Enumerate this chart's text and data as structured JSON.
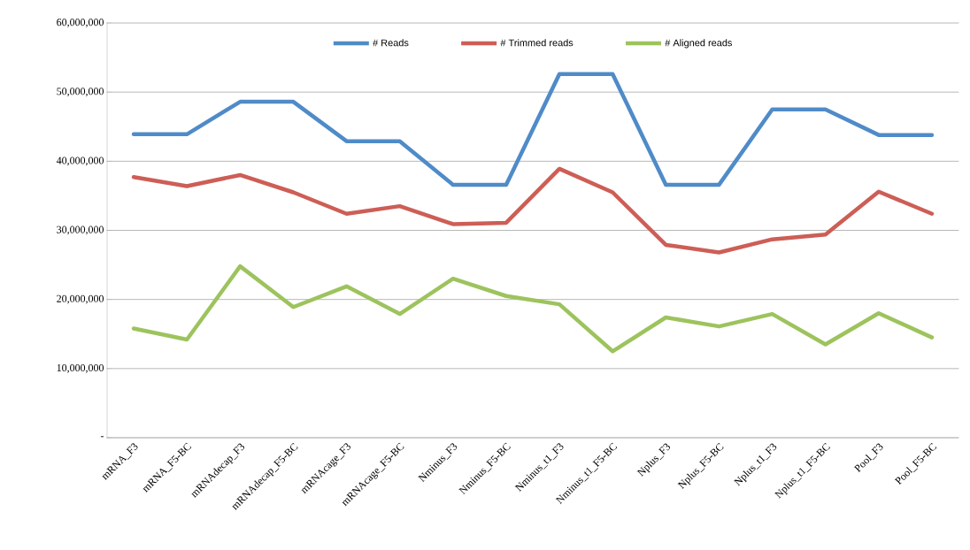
{
  "chart_data": {
    "type": "line",
    "categories": [
      "mRNA_F3",
      "mRNA_F5-BC",
      "mRNAdecap_F3",
      "mRNAdecap_F5-BC",
      "mRNAcage_F3",
      "mRNAcage_F5-BC",
      "Nminus_F3",
      "Nminus_F5-BC",
      "Nminus_t1_F3",
      "Nminus_t1_F5-BC",
      "Nplus_F3",
      "Nplus_F5-BC",
      "Nplus_t1_F3",
      "Nplus_t1_F5-BC",
      "Pool_F3",
      "Pool_F5-BC"
    ],
    "series": [
      {
        "name": "# Reads",
        "color": "#4f8bc8",
        "values": [
          43900000,
          43900000,
          48600000,
          48600000,
          42900000,
          42900000,
          36600000,
          36600000,
          52600000,
          52600000,
          36600000,
          36600000,
          47500000,
          47500000,
          43800000,
          43800000
        ]
      },
      {
        "name": "# Trimmed reads",
        "color": "#cd5e56",
        "values": [
          37700000,
          36400000,
          38000000,
          35500000,
          32400000,
          33500000,
          30900000,
          31100000,
          38900000,
          35500000,
          27900000,
          26800000,
          28700000,
          29400000,
          35600000,
          32400000
        ]
      },
      {
        "name": "# Aligned reads",
        "color": "#9dc35d",
        "values": [
          15800000,
          14200000,
          24800000,
          18900000,
          21900000,
          17900000,
          23000000,
          20500000,
          19300000,
          12500000,
          17400000,
          16100000,
          17900000,
          13500000,
          18000000,
          14500000
        ]
      }
    ],
    "ylim": [
      0,
      60000000
    ],
    "yticks": [
      {
        "value": 0,
        "label": "-"
      },
      {
        "value": 10000000,
        "label": "10,000,000"
      },
      {
        "value": 20000000,
        "label": "20,000,000"
      },
      {
        "value": 30000000,
        "label": "30,000,000"
      },
      {
        "value": 40000000,
        "label": "40,000,000"
      },
      {
        "value": 50000000,
        "label": "50,000,000"
      },
      {
        "value": 60000000,
        "label": "60,000,000"
      }
    ],
    "grid": "y",
    "legend": "top",
    "marker": "none",
    "line_style": "solid"
  }
}
